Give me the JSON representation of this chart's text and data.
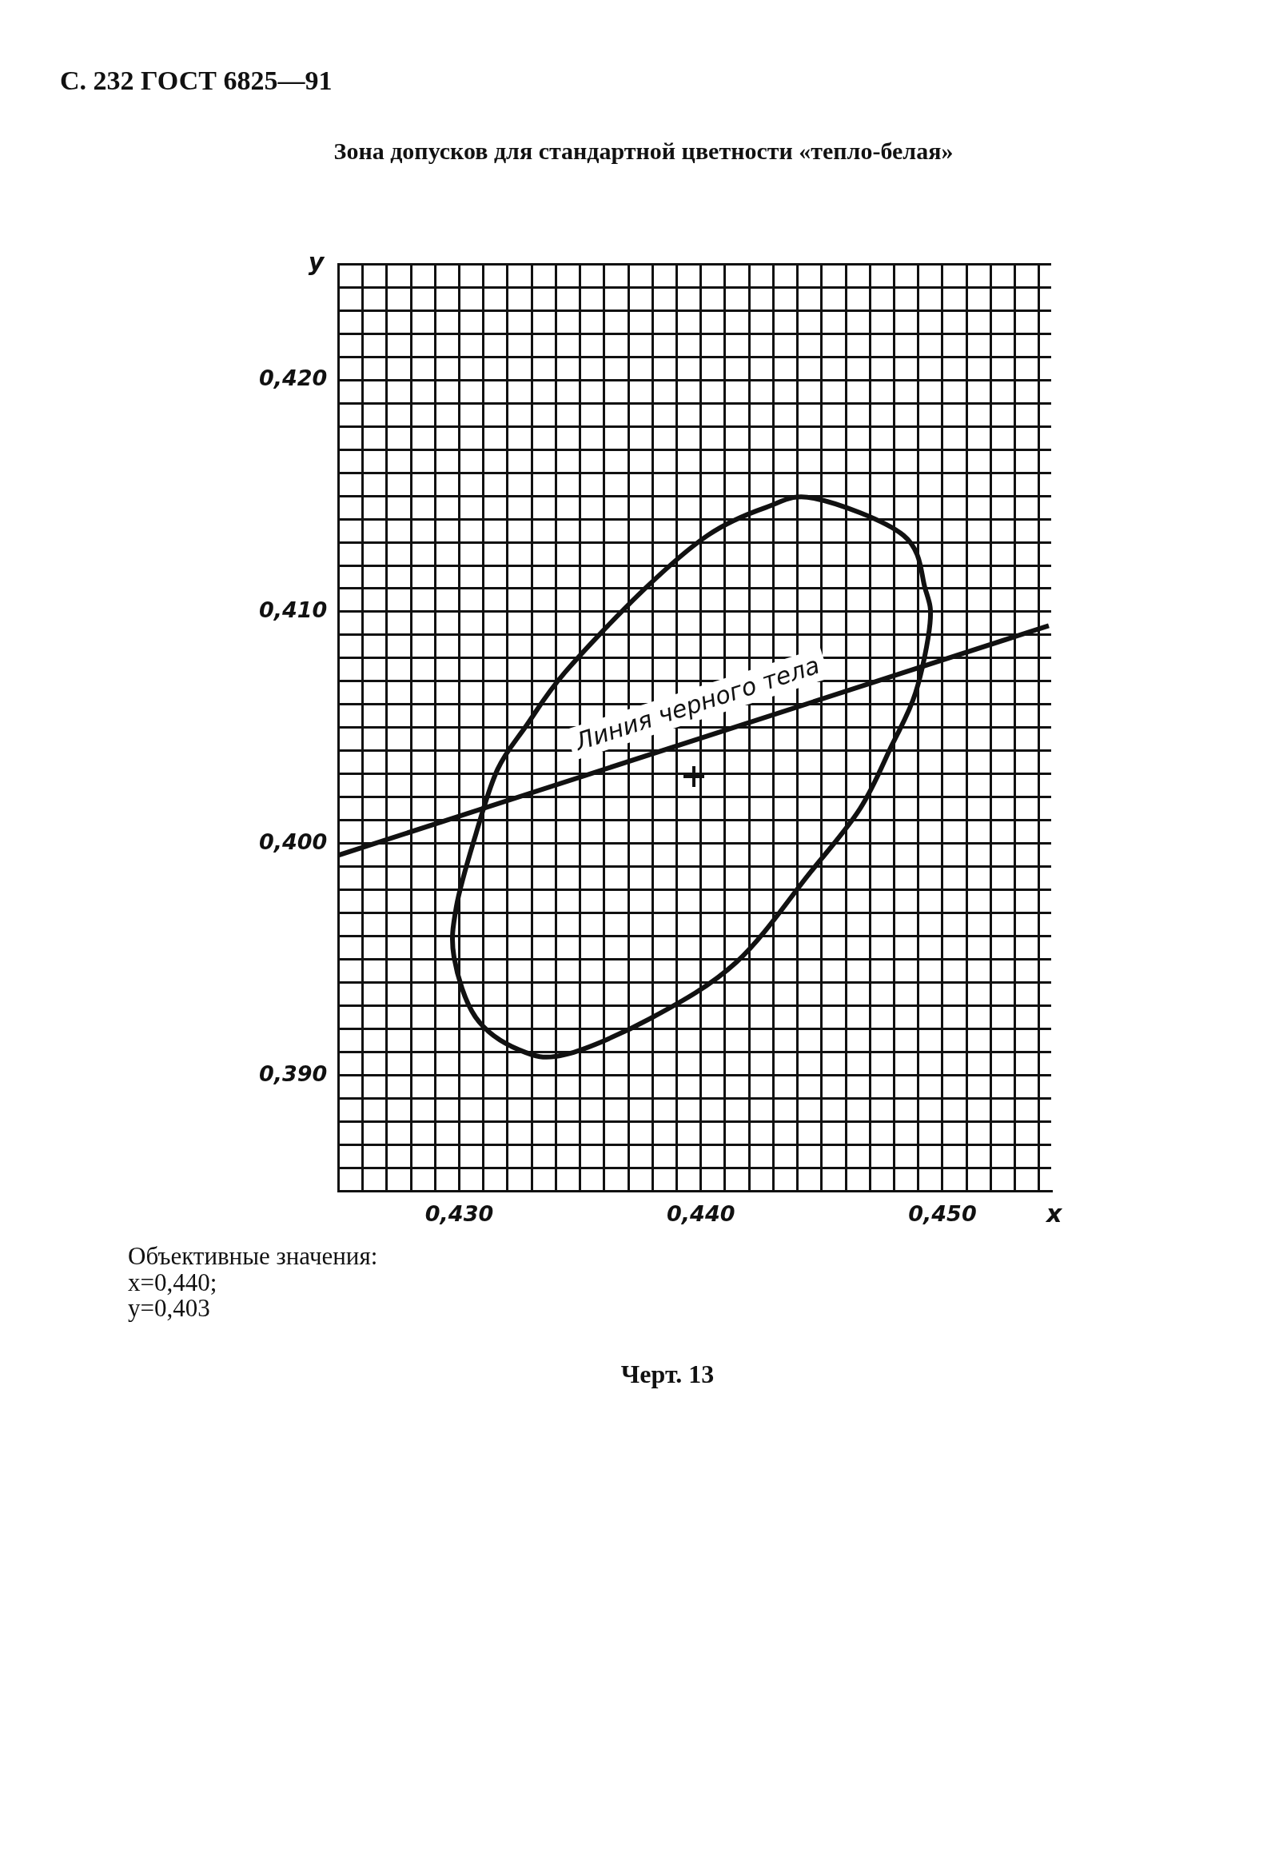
{
  "chart_data": {
    "type": "line",
    "title": "Зона допусков для стандартной цветности «тепло-белая»",
    "xlabel": "x",
    "ylabel": "y",
    "xlim": [
      0.425,
      0.4545
    ],
    "ylim": [
      0.385,
      0.425
    ],
    "xticks": [
      {
        "value": 0.425,
        "label": null
      },
      {
        "value": 0.426,
        "label": null
      },
      {
        "value": 0.427,
        "label": null
      },
      {
        "value": 0.428,
        "label": null
      },
      {
        "value": 0.429,
        "label": null
      },
      {
        "value": 0.43,
        "label": "0,430"
      },
      {
        "value": 0.431,
        "label": null
      },
      {
        "value": 0.432,
        "label": null
      },
      {
        "value": 0.433,
        "label": null
      },
      {
        "value": 0.434,
        "label": null
      },
      {
        "value": 0.435,
        "label": null
      },
      {
        "value": 0.436,
        "label": null
      },
      {
        "value": 0.437,
        "label": null
      },
      {
        "value": 0.438,
        "label": null
      },
      {
        "value": 0.439,
        "label": null
      },
      {
        "value": 0.44,
        "label": "0,440"
      },
      {
        "value": 0.441,
        "label": null
      },
      {
        "value": 0.442,
        "label": null
      },
      {
        "value": 0.443,
        "label": null
      },
      {
        "value": 0.444,
        "label": null
      },
      {
        "value": 0.445,
        "label": null
      },
      {
        "value": 0.446,
        "label": null
      },
      {
        "value": 0.447,
        "label": null
      },
      {
        "value": 0.448,
        "label": null
      },
      {
        "value": 0.449,
        "label": null
      },
      {
        "value": 0.45,
        "label": "0,450"
      },
      {
        "value": 0.451,
        "label": null
      },
      {
        "value": 0.452,
        "label": null
      },
      {
        "value": 0.453,
        "label": null
      },
      {
        "value": 0.454,
        "label": null
      }
    ],
    "yticks": [
      {
        "value": 0.385,
        "label": null
      },
      {
        "value": 0.386,
        "label": null
      },
      {
        "value": 0.387,
        "label": null
      },
      {
        "value": 0.388,
        "label": null
      },
      {
        "value": 0.389,
        "label": null
      },
      {
        "value": 0.39,
        "label": "0,390"
      },
      {
        "value": 0.391,
        "label": null
      },
      {
        "value": 0.392,
        "label": null
      },
      {
        "value": 0.393,
        "label": null
      },
      {
        "value": 0.394,
        "label": null
      },
      {
        "value": 0.395,
        "label": null
      },
      {
        "value": 0.396,
        "label": null
      },
      {
        "value": 0.397,
        "label": null
      },
      {
        "value": 0.398,
        "label": null
      },
      {
        "value": 0.399,
        "label": null
      },
      {
        "value": 0.4,
        "label": "0,400"
      },
      {
        "value": 0.401,
        "label": null
      },
      {
        "value": 0.402,
        "label": null
      },
      {
        "value": 0.403,
        "label": null
      },
      {
        "value": 0.404,
        "label": null
      },
      {
        "value": 0.405,
        "label": null
      },
      {
        "value": 0.406,
        "label": null
      },
      {
        "value": 0.407,
        "label": null
      },
      {
        "value": 0.408,
        "label": null
      },
      {
        "value": 0.409,
        "label": null
      },
      {
        "value": 0.41,
        "label": "0,410"
      },
      {
        "value": 0.411,
        "label": null
      },
      {
        "value": 0.412,
        "label": null
      },
      {
        "value": 0.413,
        "label": null
      },
      {
        "value": 0.414,
        "label": null
      },
      {
        "value": 0.415,
        "label": null
      },
      {
        "value": 0.416,
        "label": null
      },
      {
        "value": 0.417,
        "label": null
      },
      {
        "value": 0.418,
        "label": null
      },
      {
        "value": 0.419,
        "label": null
      },
      {
        "value": 0.42,
        "label": "0,420"
      },
      {
        "value": 0.421,
        "label": null
      },
      {
        "value": 0.422,
        "label": null
      },
      {
        "value": 0.423,
        "label": null
      },
      {
        "value": 0.424,
        "label": null
      },
      {
        "value": 0.425,
        "label": null
      }
    ],
    "grid": true,
    "legend": false,
    "series": [
      {
        "color": "#111111",
        "marker": "none",
        "x": [
          0.425,
          0.4544
        ],
        "values": [
          0.3995,
          0.4094
        ]
      }
    ],
    "annotations": [
      "С. 232 ГОСТ 6825—91",
      "Линия черного тела",
      "Объективные значения:\nx=0,440;\ny=0,403",
      "Черт. 13"
    ]
  }
}
